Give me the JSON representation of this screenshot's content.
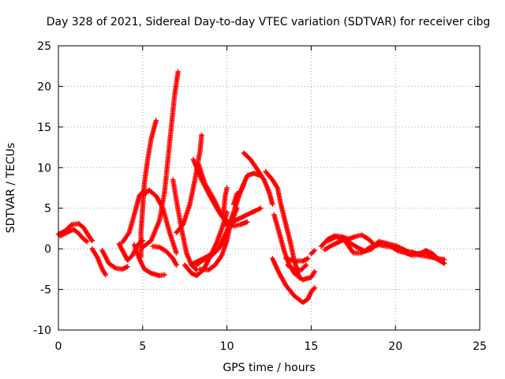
{
  "chart_data": {
    "type": "scatter",
    "title": "Day 328 of 2021, Sidereal Day-to-day VTEC variation (SDTVAR) for receiver cibg",
    "xlabel": "GPS time / hours",
    "ylabel": "SDTVAR / TECUs",
    "xlim": [
      0,
      25
    ],
    "ylim": [
      -10,
      25
    ],
    "xticks": [
      0,
      5,
      10,
      15,
      20,
      25
    ],
    "yticks": [
      -10,
      -5,
      0,
      5,
      10,
      15,
      20,
      25
    ],
    "grid": true,
    "marker": "plus",
    "color": "#ff0000",
    "series": [
      {
        "name": "s1",
        "points": [
          [
            0.0,
            1.8
          ],
          [
            0.4,
            2.2
          ],
          [
            0.8,
            3.0
          ],
          [
            1.2,
            3.1
          ],
          [
            1.5,
            2.6
          ],
          [
            1.8,
            1.6
          ],
          [
            2.0,
            1.0
          ]
        ]
      },
      {
        "name": "s2",
        "points": [
          [
            0.1,
            1.6
          ],
          [
            0.5,
            2.0
          ],
          [
            0.9,
            2.4
          ],
          [
            1.2,
            1.9
          ],
          [
            1.5,
            1.2
          ],
          [
            1.7,
            0.9
          ]
        ]
      },
      {
        "name": "s3",
        "points": [
          [
            2.0,
            0.0
          ],
          [
            2.3,
            -1.0
          ],
          [
            2.6,
            -2.5
          ],
          [
            2.8,
            -3.2
          ]
        ]
      },
      {
        "name": "s4",
        "points": [
          [
            2.6,
            -0.2
          ],
          [
            3.0,
            -1.8
          ],
          [
            3.4,
            -2.4
          ],
          [
            3.8,
            -2.5
          ],
          [
            4.1,
            -2.2
          ]
        ]
      },
      {
        "name": "s5",
        "points": [
          [
            3.6,
            0.6
          ],
          [
            3.9,
            -0.6
          ],
          [
            4.1,
            -1.4
          ],
          [
            4.4,
            -0.8
          ],
          [
            4.7,
            0.5
          ],
          [
            5.0,
            1.0
          ]
        ]
      },
      {
        "name": "s6",
        "points": [
          [
            3.8,
            0.8
          ],
          [
            4.2,
            2.0
          ],
          [
            4.5,
            4.2
          ],
          [
            4.8,
            6.5
          ],
          [
            5.0,
            7.0
          ],
          [
            5.2,
            6.8
          ]
        ]
      },
      {
        "name": "s7",
        "points": [
          [
            4.5,
            0.5
          ],
          [
            4.8,
            -1.2
          ],
          [
            5.1,
            -2.5
          ],
          [
            5.5,
            -3.0
          ],
          [
            6.0,
            -3.3
          ],
          [
            6.3,
            -3.2
          ]
        ]
      },
      {
        "name": "s8",
        "points": [
          [
            5.0,
            6.8
          ],
          [
            5.4,
            7.2
          ],
          [
            5.8,
            6.5
          ],
          [
            6.2,
            5.0
          ],
          [
            6.6,
            2.0
          ],
          [
            7.0,
            -0.5
          ]
        ]
      },
      {
        "name": "s9",
        "points": [
          [
            4.9,
            -1.0
          ],
          [
            4.9,
            2.0
          ],
          [
            5.0,
            5.0
          ],
          [
            5.1,
            8.0
          ],
          [
            5.3,
            11.0
          ],
          [
            5.5,
            13.5
          ],
          [
            5.8,
            15.8
          ]
        ]
      },
      {
        "name": "s10",
        "points": [
          [
            5.0,
            0.2
          ],
          [
            5.5,
            1.0
          ],
          [
            6.0,
            3.5
          ],
          [
            6.3,
            7.0
          ],
          [
            6.5,
            11.0
          ],
          [
            6.7,
            15.0
          ],
          [
            6.9,
            19.0
          ],
          [
            7.1,
            21.8
          ]
        ]
      },
      {
        "name": "s11",
        "points": [
          [
            5.6,
            0.3
          ],
          [
            6.0,
            0.2
          ],
          [
            6.4,
            -0.3
          ],
          [
            6.8,
            -1.2
          ],
          [
            7.0,
            -2.0
          ]
        ]
      },
      {
        "name": "s12",
        "points": [
          [
            6.8,
            8.5
          ],
          [
            7.0,
            6.0
          ],
          [
            7.3,
            2.5
          ],
          [
            7.6,
            -0.5
          ],
          [
            7.9,
            -2.0
          ],
          [
            8.2,
            -2.6
          ]
        ]
      },
      {
        "name": "s13",
        "points": [
          [
            7.0,
            2.0
          ],
          [
            7.4,
            3.0
          ],
          [
            7.8,
            5.5
          ],
          [
            8.1,
            8.5
          ],
          [
            8.4,
            12.0
          ],
          [
            8.5,
            14.0
          ]
        ]
      },
      {
        "name": "s14",
        "points": [
          [
            7.5,
            -2.0
          ],
          [
            7.9,
            -3.0
          ],
          [
            8.2,
            -3.3
          ],
          [
            8.6,
            -2.6
          ],
          [
            9.0,
            -1.0
          ],
          [
            9.4,
            0.8
          ],
          [
            9.7,
            2.5
          ],
          [
            10.0,
            4.5
          ]
        ]
      },
      {
        "name": "s15",
        "points": [
          [
            8.0,
            -1.8
          ],
          [
            8.6,
            -1.2
          ],
          [
            9.2,
            -0.5
          ],
          [
            9.7,
            0.5
          ],
          [
            10.0,
            2.0
          ],
          [
            10.3,
            3.5
          ],
          [
            10.6,
            5.0
          ]
        ]
      },
      {
        "name": "s16",
        "points": [
          [
            8.2,
            -2.0
          ],
          [
            8.5,
            -1.5
          ],
          [
            9.0,
            -1.0
          ],
          [
            9.5,
            0.0
          ],
          [
            10.0,
            2.2
          ],
          [
            10.4,
            4.5
          ],
          [
            10.8,
            7.0
          ],
          [
            11.2,
            9.0
          ],
          [
            11.6,
            9.3
          ],
          [
            12.0,
            9.0
          ]
        ]
      },
      {
        "name": "s17",
        "points": [
          [
            8.4,
            -2.5
          ],
          [
            8.9,
            -2.6
          ],
          [
            9.3,
            -2.0
          ],
          [
            9.7,
            -0.8
          ],
          [
            10.0,
            1.0
          ],
          [
            10.2,
            3.0
          ]
        ]
      },
      {
        "name": "s18",
        "points": [
          [
            8.0,
            11.0
          ],
          [
            8.5,
            8.5
          ],
          [
            9.0,
            6.5
          ],
          [
            9.4,
            5.0
          ],
          [
            9.7,
            4.0
          ],
          [
            10.0,
            3.5
          ]
        ]
      },
      {
        "name": "s19",
        "points": [
          [
            8.3,
            10.5
          ],
          [
            8.7,
            8.0
          ],
          [
            9.2,
            6.2
          ],
          [
            9.6,
            4.5
          ],
          [
            10.0,
            3.0
          ],
          [
            10.4,
            2.8
          ],
          [
            10.8,
            3.0
          ],
          [
            11.2,
            3.3
          ]
        ]
      },
      {
        "name": "s20",
        "points": [
          [
            10.0,
            2.8
          ],
          [
            10.5,
            3.5
          ],
          [
            11.0,
            4.0
          ],
          [
            11.5,
            4.5
          ],
          [
            12.0,
            5.0
          ]
        ]
      },
      {
        "name": "s21",
        "points": [
          [
            9.8,
            4.5
          ],
          [
            9.9,
            6.5
          ],
          [
            10.0,
            7.5
          ]
        ]
      },
      {
        "name": "s22",
        "points": [
          [
            10.4,
            5.5
          ],
          [
            10.6,
            6.8
          ],
          [
            10.8,
            7.0
          ],
          [
            11.0,
            8.0
          ]
        ]
      },
      {
        "name": "s23",
        "points": [
          [
            11.0,
            11.8
          ],
          [
            11.4,
            11.0
          ],
          [
            11.8,
            9.8
          ],
          [
            12.2,
            8.5
          ],
          [
            12.5,
            7.0
          ],
          [
            12.7,
            5.5
          ]
        ]
      },
      {
        "name": "s24",
        "points": [
          [
            12.3,
            9.5
          ],
          [
            12.7,
            8.5
          ],
          [
            13.0,
            7.5
          ],
          [
            13.2,
            5.5
          ],
          [
            13.5,
            3.0
          ],
          [
            13.8,
            0.5
          ],
          [
            14.0,
            -1.5
          ],
          [
            14.2,
            -2.8
          ],
          [
            14.3,
            -3.6
          ]
        ]
      },
      {
        "name": "s25",
        "points": [
          [
            12.8,
            4.2
          ],
          [
            13.1,
            2.0
          ],
          [
            13.4,
            -0.3
          ],
          [
            13.7,
            -2.0
          ],
          [
            14.0,
            -3.0
          ],
          [
            14.5,
            -3.8
          ],
          [
            15.0,
            -3.5
          ],
          [
            15.2,
            -2.8
          ]
        ]
      },
      {
        "name": "s26",
        "points": [
          [
            12.7,
            -1.2
          ],
          [
            13.1,
            -3.0
          ],
          [
            13.5,
            -4.5
          ],
          [
            14.0,
            -5.8
          ],
          [
            14.5,
            -6.6
          ],
          [
            14.8,
            -6.2
          ],
          [
            15.0,
            -5.3
          ],
          [
            15.2,
            -4.8
          ]
        ]
      },
      {
        "name": "s27",
        "points": [
          [
            13.5,
            -1.2
          ],
          [
            14.0,
            -1.5
          ],
          [
            14.5,
            -1.5
          ],
          [
            14.8,
            -1.2
          ]
        ]
      },
      {
        "name": "s28",
        "points": [
          [
            13.6,
            -2.0
          ],
          [
            14.0,
            -2.6
          ],
          [
            14.4,
            -2.6
          ],
          [
            14.7,
            -2.0
          ]
        ]
      },
      {
        "name": "s29",
        "points": [
          [
            15.0,
            -0.6
          ],
          [
            15.2,
            -0.2
          ]
        ]
      },
      {
        "name": "s30",
        "points": [
          [
            15.6,
            0.3
          ],
          [
            16.0,
            1.2
          ],
          [
            16.4,
            1.6
          ],
          [
            16.8,
            1.5
          ],
          [
            17.2,
            1.2
          ],
          [
            17.6,
            1.5
          ],
          [
            18.0,
            1.7
          ],
          [
            18.4,
            1.2
          ],
          [
            18.8,
            0.4
          ],
          [
            19.2,
            0.8
          ],
          [
            19.6,
            0.6
          ],
          [
            20.0,
            0.4
          ],
          [
            20.4,
            0.0
          ],
          [
            20.8,
            -0.4
          ],
          [
            21.2,
            -0.6
          ],
          [
            21.6,
            -0.5
          ],
          [
            22.0,
            -0.7
          ],
          [
            22.4,
            -1.2
          ],
          [
            22.8,
            -1.6
          ]
        ]
      },
      {
        "name": "s31",
        "points": [
          [
            15.8,
            -0.1
          ],
          [
            16.2,
            0.4
          ],
          [
            16.6,
            0.8
          ],
          [
            17.0,
            1.2
          ],
          [
            17.4,
            0.6
          ],
          [
            17.8,
            0.1
          ],
          [
            18.2,
            -0.3
          ],
          [
            18.6,
            0.0
          ],
          [
            19.0,
            0.9
          ],
          [
            19.4,
            0.7
          ],
          [
            19.8,
            0.2
          ],
          [
            20.2,
            -0.3
          ],
          [
            20.6,
            -0.5
          ],
          [
            21.0,
            -0.8
          ],
          [
            21.4,
            -0.7
          ],
          [
            21.8,
            -0.2
          ],
          [
            22.2,
            -0.6
          ],
          [
            22.6,
            -1.4
          ],
          [
            22.9,
            -1.8
          ]
        ]
      },
      {
        "name": "s32",
        "points": [
          [
            16.0,
            1.0
          ],
          [
            16.5,
            1.5
          ],
          [
            17.0,
            1.0
          ],
          [
            17.5,
            -0.5
          ],
          [
            18.0,
            -0.5
          ],
          [
            18.5,
            0.2
          ],
          [
            19.0,
            0.5
          ],
          [
            19.5,
            0.3
          ],
          [
            20.0,
            0.2
          ],
          [
            20.5,
            -0.3
          ],
          [
            21.0,
            -0.4
          ],
          [
            21.5,
            -0.8
          ],
          [
            22.0,
            -1.0
          ],
          [
            22.5,
            -1.2
          ],
          [
            22.9,
            -1.3
          ]
        ]
      }
    ]
  }
}
